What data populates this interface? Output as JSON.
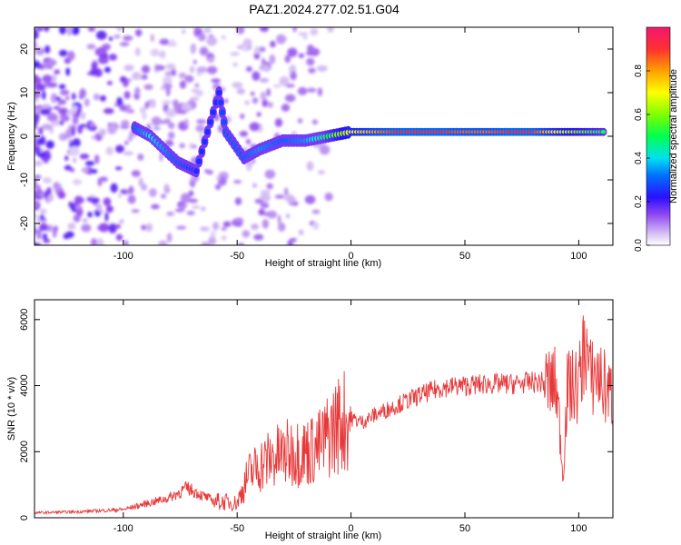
{
  "figure_title": "PAZ1.2024.277.02.51.G04",
  "chart_data": [
    {
      "type": "heatmap",
      "title": "PAZ1.2024.277.02.51.G04",
      "xlabel": "Height of straight line (km)",
      "ylabel": "Frequency (Hz)",
      "xlim": [
        -139,
        115
      ],
      "ylim": [
        -25,
        25
      ],
      "x_ticks": [
        -100,
        -50,
        0,
        50,
        100
      ],
      "x_tick_labels": [
        "-100",
        "-50",
        "0",
        "50",
        "100"
      ],
      "y_ticks": [
        -20,
        -10,
        0,
        10,
        20
      ],
      "y_tick_labels": [
        "-20",
        "-10",
        "0",
        "10",
        "20"
      ],
      "colorbar": {
        "label": "Normalized spectral amplitude",
        "range": [
          0,
          1
        ],
        "ticks": [
          0.0,
          0.2,
          0.4,
          0.6,
          0.8
        ],
        "tick_labels": [
          "0.0",
          "0.2",
          "0.4",
          "0.6",
          "0.8"
        ],
        "colormap": [
          "#ffffff",
          "#c8a8f0",
          "#7a2cf0",
          "#1a10ff",
          "#00d8ff",
          "#00ff60",
          "#c8ff00",
          "#ffd000",
          "#ff3040",
          "#f0186a"
        ]
      },
      "ridge": [
        {
          "x": -95,
          "y": 2,
          "a": 0.3
        },
        {
          "x": -88,
          "y": 0,
          "a": 0.4
        },
        {
          "x": -82,
          "y": -3,
          "a": 0.35
        },
        {
          "x": -76,
          "y": -6,
          "a": 0.3
        },
        {
          "x": -68,
          "y": -8,
          "a": 0.25
        },
        {
          "x": -58,
          "y": 10,
          "a": 0.25
        },
        {
          "x": -55,
          "y": 1,
          "a": 0.3
        },
        {
          "x": -47,
          "y": -5,
          "a": 0.3
        },
        {
          "x": -40,
          "y": -3,
          "a": 0.35
        },
        {
          "x": -30,
          "y": -1,
          "a": 0.3
        },
        {
          "x": -20,
          "y": -1,
          "a": 0.35
        },
        {
          "x": -10,
          "y": 0,
          "a": 0.5
        },
        {
          "x": 0,
          "y": 1,
          "a": 0.7
        },
        {
          "x": 10,
          "y": 1,
          "a": 0.8
        },
        {
          "x": 20,
          "y": 1,
          "a": 0.9
        },
        {
          "x": 30,
          "y": 1,
          "a": 0.9
        },
        {
          "x": 40,
          "y": 1,
          "a": 0.9
        },
        {
          "x": 50,
          "y": 1,
          "a": 0.85
        },
        {
          "x": 60,
          "y": 1,
          "a": 0.85
        },
        {
          "x": 70,
          "y": 1,
          "a": 0.9
        },
        {
          "x": 80,
          "y": 1,
          "a": 0.9
        },
        {
          "x": 90,
          "y": 1,
          "a": 0.7
        },
        {
          "x": 100,
          "y": 1,
          "a": 0.6
        },
        {
          "x": 112,
          "y": 1,
          "a": 0.5
        }
      ]
    },
    {
      "type": "line",
      "xlabel": "Height of straight line (km)",
      "ylabel": "SNR (10 * v/v)",
      "xlim": [
        -139,
        115
      ],
      "ylim": [
        0,
        6600
      ],
      "x_ticks": [
        -100,
        -50,
        0,
        50,
        100
      ],
      "x_tick_labels": [
        "-100",
        "-50",
        "0",
        "50",
        "100"
      ],
      "y_ticks": [
        0,
        2000,
        4000,
        6000
      ],
      "y_tick_labels": [
        "0",
        "2000",
        "4000",
        "6000"
      ],
      "color": "#e8393a",
      "x": [
        -139,
        -120,
        -100,
        -80,
        -72,
        -60,
        -50,
        -45,
        -40,
        -35,
        -30,
        -25,
        -20,
        -15,
        -13,
        -10,
        -5,
        0,
        5,
        10,
        20,
        30,
        40,
        50,
        60,
        70,
        80,
        85,
        90,
        92,
        93,
        95,
        100,
        103,
        105,
        108,
        110,
        115
      ],
      "y": [
        150,
        180,
        250,
        600,
        900,
        500,
        450,
        1300,
        1600,
        1800,
        1900,
        2000,
        2000,
        2100,
        2200,
        2500,
        2900,
        3000,
        2900,
        3100,
        3400,
        3700,
        3950,
        4000,
        4050,
        4050,
        4100,
        4100,
        4000,
        2500,
        1200,
        3900,
        4000,
        5400,
        4200,
        4400,
        4100,
        3600
      ]
    }
  ]
}
